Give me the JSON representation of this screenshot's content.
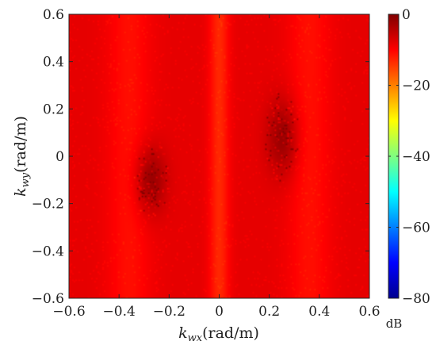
{
  "chart_data": {
    "type": "heatmap",
    "title": "",
    "xlabel": {
      "symbol": "k",
      "subscript": "wx",
      "unit": "(rad/m)"
    },
    "ylabel": {
      "symbol": "k",
      "subscript": "wy",
      "unit": "(rad/m)"
    },
    "xlim": [
      -0.6,
      0.6
    ],
    "ylim": [
      -0.6,
      0.6
    ],
    "x_ticks": [
      -0.6,
      -0.4,
      -0.2,
      0,
      0.2,
      0.4,
      0.6
    ],
    "y_ticks": [
      -0.6,
      -0.4,
      -0.2,
      0,
      0.2,
      0.4,
      0.6
    ],
    "x_tick_labels": [
      "−0.6",
      "−0.4",
      "−0.2",
      "0",
      "0.2",
      "0.4",
      "0.6"
    ],
    "y_tick_labels": [
      "−0.6",
      "−0.4",
      "−0.2",
      "0",
      "0.2",
      "0.4",
      "0.6"
    ],
    "colorbar": {
      "unit": "dB",
      "clim": [
        -80,
        0
      ],
      "ticks": [
        0,
        -20,
        -40,
        -60,
        -80
      ],
      "tick_labels": [
        "0",
        "−20",
        "−40",
        "−60",
        "−80"
      ],
      "colormap": "jet"
    },
    "field": {
      "background_db": -8,
      "vertical_bands": [
        {
          "kx": 0,
          "width": 0.04,
          "db": -13
        },
        {
          "kx": -0.36,
          "width": 0.09,
          "db": -11
        },
        {
          "kx": 0.36,
          "width": 0.09,
          "db": -11
        }
      ],
      "hotspots": [
        {
          "kx": -0.27,
          "ky": -0.1,
          "rx": 0.06,
          "ry": 0.14,
          "db": -1
        },
        {
          "kx": 0.25,
          "ky": 0.08,
          "rx": 0.06,
          "ry": 0.16,
          "db": -1
        }
      ]
    }
  }
}
